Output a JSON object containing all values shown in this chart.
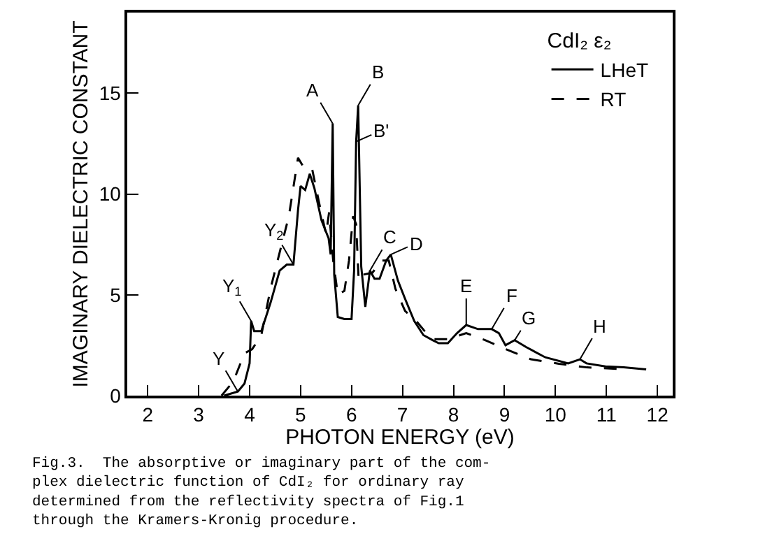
{
  "chart_data": {
    "type": "line",
    "xlabel": "PHOTON ENERGY (eV)",
    "ylabel": "IMAGINARY DIELECTRIC CONSTANT",
    "legend_title": "CdI₂ ε₂",
    "legend": "top right",
    "grid": false,
    "marker": "none",
    "xlim": [
      1.6,
      12.3
    ],
    "xticks": [
      2,
      3,
      4,
      5,
      6,
      7,
      8,
      9,
      10,
      11,
      12
    ],
    "ylim": [
      0,
      19
    ],
    "yticks": [
      0,
      5,
      10,
      15
    ],
    "series": [
      {
        "name": "LHeT",
        "color": "#000000",
        "line_style": "solid",
        "x": [
          3.5,
          3.77,
          3.9,
          4.0,
          4.03,
          4.09,
          4.23,
          4.41,
          4.59,
          4.73,
          4.86,
          4.95,
          5.0,
          5.09,
          5.18,
          5.27,
          5.41,
          5.55,
          5.59,
          5.63,
          5.66,
          5.73,
          5.86,
          6.0,
          6.05,
          6.09,
          6.13,
          6.19,
          6.27,
          6.36,
          6.45,
          6.55,
          6.68,
          6.77,
          6.91,
          7.05,
          7.23,
          7.41,
          7.59,
          7.71,
          7.89,
          8.07,
          8.25,
          8.48,
          8.75,
          8.89,
          9.02,
          9.2,
          9.43,
          9.8,
          10.25,
          10.48,
          10.61,
          10.98,
          11.34,
          11.78
        ],
        "values": [
          0,
          0.2,
          0.6,
          1.6,
          3.7,
          3.2,
          3.2,
          4.6,
          6.2,
          6.5,
          6.5,
          9.2,
          10.4,
          10.2,
          11.0,
          10.3,
          8.7,
          7.8,
          7.0,
          13.5,
          6.0,
          3.9,
          3.8,
          3.8,
          6.2,
          12.6,
          14.4,
          6.4,
          4.4,
          6.2,
          5.8,
          5.8,
          6.7,
          7.0,
          5.7,
          4.8,
          3.7,
          3.0,
          2.75,
          2.6,
          2.6,
          3.1,
          3.5,
          3.3,
          3.3,
          3.1,
          2.5,
          2.75,
          2.4,
          1.9,
          1.6,
          1.8,
          1.6,
          1.45,
          1.4,
          1.3
        ]
      },
      {
        "name": "RT",
        "color": "#000000",
        "line_style": "dashed",
        "x": [
          3.45,
          3.68,
          3.9,
          4.05,
          4.23,
          4.41,
          4.59,
          4.77,
          4.95,
          5.09,
          5.23,
          5.36,
          5.5,
          5.56,
          5.64,
          5.73,
          5.86,
          5.95,
          6.03,
          6.09,
          6.14,
          6.23,
          6.41,
          6.59,
          6.73,
          6.86,
          7.05,
          7.27,
          7.5,
          7.62,
          7.89,
          8.25,
          8.62,
          8.98,
          9.52,
          10.07,
          10.61,
          11.43
        ],
        "values": [
          0,
          0.7,
          2.1,
          2.3,
          3.0,
          5.3,
          7.1,
          8.9,
          11.8,
          11.2,
          11.2,
          9.6,
          8.0,
          9.1,
          6.7,
          5.0,
          5.2,
          6.7,
          8.9,
          8.5,
          5.7,
          6.0,
          6.1,
          6.7,
          6.7,
          5.3,
          4.2,
          3.7,
          3.0,
          2.8,
          2.8,
          3.1,
          2.75,
          2.35,
          1.8,
          1.58,
          1.4,
          1.3
        ]
      }
    ],
    "annotations": [
      {
        "text": "A",
        "x": 5.63,
        "y": 13.5
      },
      {
        "text": "B",
        "x": 6.13,
        "y": 14.4
      },
      {
        "text": "B'",
        "x": 6.09,
        "y": 12.6
      },
      {
        "text": "C",
        "x": 6.36,
        "y": 6.2
      },
      {
        "text": "D",
        "x": 6.77,
        "y": 7.0
      },
      {
        "text": "Y$_{2}$",
        "x": 4.86,
        "y": 6.5
      },
      {
        "text": "Y$_{1}$",
        "x": 4.03,
        "y": 3.7
      },
      {
        "text": "Y",
        "x": 3.77,
        "y": 0.2
      },
      {
        "text": "E",
        "x": 8.25,
        "y": 3.5
      },
      {
        "text": "F",
        "x": 8.75,
        "y": 3.3
      },
      {
        "text": "G",
        "x": 9.2,
        "y": 2.75
      },
      {
        "text": "H",
        "x": 10.48,
        "y": 1.8
      },
      "Fig.3.  The absorptive or imaginary part of the com-\nplex dielectric function of CdI₂ for ordinary ray\ndetermined from the reflectivity spectra of Fig.1\nthrough the Kramers-Kronig procedure."
    ]
  }
}
